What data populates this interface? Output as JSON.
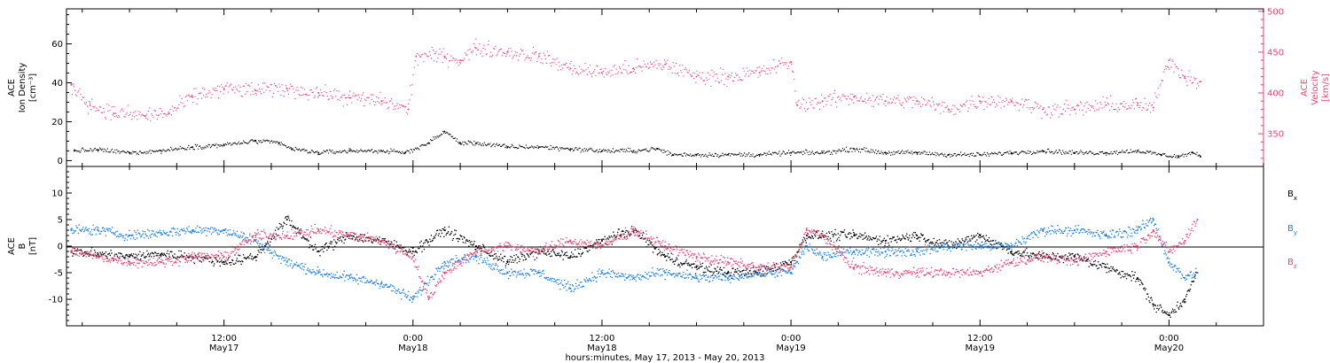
{
  "chart_data": {
    "type": "scatter",
    "x_axis": {
      "title": "hours:minutes, May 17, 2013 - May 20, 2013",
      "ticks": [
        {
          "hours": 12,
          "time": "12:00",
          "date": "May17"
        },
        {
          "hours": 24,
          "time": "0:00",
          "date": "May18"
        },
        {
          "hours": 36,
          "time": "12:00",
          "date": "May18"
        },
        {
          "hours": 48,
          "time": "0:00",
          "date": "May19"
        },
        {
          "hours": 60,
          "time": "12:00",
          "date": "May19"
        },
        {
          "hours": 72,
          "time": "0:00",
          "date": "May20"
        }
      ],
      "range_hours": [
        2,
        78
      ]
    },
    "panels": [
      {
        "id": "plasma",
        "left_axis": {
          "label_lines": [
            "ACE",
            "Ion Density",
            "[cm⁻³]"
          ],
          "ticks": [
            0,
            20,
            40,
            60
          ],
          "range": [
            -3,
            78
          ],
          "color": "#000000"
        },
        "right_axis": {
          "label_lines": [
            "ACE",
            "Velocity",
            "[km/s]"
          ],
          "ticks": [
            350,
            400,
            450,
            500
          ],
          "range": [
            310,
            503
          ],
          "color": "#e8436f"
        },
        "series": [
          {
            "name": "density",
            "axis": "left",
            "color": "#000000",
            "points": [
              [
                2.5,
                5
              ],
              [
                4,
                5.5
              ],
              [
                6,
                4
              ],
              [
                8,
                5
              ],
              [
                10,
                7
              ],
              [
                12,
                8
              ],
              [
                14,
                10
              ],
              [
                15.5,
                9
              ],
              [
                16.3,
                6
              ],
              [
                18,
                4
              ],
              [
                20,
                5
              ],
              [
                22,
                5
              ],
              [
                23.5,
                4
              ],
              [
                25,
                9
              ],
              [
                26,
                15
              ],
              [
                27,
                9
              ],
              [
                28,
                9
              ],
              [
                30,
                7
              ],
              [
                32,
                7
              ],
              [
                34,
                6
              ],
              [
                36,
                5
              ],
              [
                38,
                5
              ],
              [
                39.5,
                6
              ],
              [
                40.5,
                3
              ],
              [
                42,
                3
              ],
              [
                44,
                3
              ],
              [
                46,
                3
              ],
              [
                48,
                4
              ],
              [
                50,
                4
              ],
              [
                52,
                6
              ],
              [
                54,
                4
              ],
              [
                56,
                4
              ],
              [
                58,
                3
              ],
              [
                60,
                3
              ],
              [
                62,
                4
              ],
              [
                64,
                5
              ],
              [
                66,
                4
              ],
              [
                68,
                4
              ],
              [
                70,
                5
              ],
              [
                71.5,
                3
              ],
              [
                72.6,
                2
              ],
              [
                73.5,
                4
              ],
              [
                74,
                2
              ]
            ]
          },
          {
            "name": "velocity",
            "axis": "right",
            "color": "#e8436f",
            "points": [
              [
                2.3,
                410
              ],
              [
                3.5,
                385
              ],
              [
                5,
                375
              ],
              [
                7,
                372
              ],
              [
                8.5,
                375
              ],
              [
                10,
                395
              ],
              [
                12,
                405
              ],
              [
                14,
                403
              ],
              [
                16,
                405
              ],
              [
                18,
                400
              ],
              [
                20,
                394
              ],
              [
                22,
                390
              ],
              [
                23.7,
                380
              ],
              [
                24.2,
                445
              ],
              [
                26,
                445
              ],
              [
                27,
                440
              ],
              [
                28,
                455
              ],
              [
                30,
                450
              ],
              [
                32,
                445
              ],
              [
                34,
                430
              ],
              [
                36,
                425
              ],
              [
                38,
                430
              ],
              [
                40,
                435
              ],
              [
                42,
                420
              ],
              [
                44,
                420
              ],
              [
                46,
                425
              ],
              [
                48,
                438
              ],
              [
                48.4,
                385
              ],
              [
                50,
                390
              ],
              [
                52,
                395
              ],
              [
                54,
                390
              ],
              [
                56,
                390
              ],
              [
                58,
                380
              ],
              [
                60,
                390
              ],
              [
                62,
                390
              ],
              [
                64,
                380
              ],
              [
                66,
                380
              ],
              [
                68,
                385
              ],
              [
                70,
                385
              ],
              [
                71,
                382
              ],
              [
                72,
                440
              ],
              [
                73,
                420
              ],
              [
                74,
                414
              ]
            ]
          }
        ]
      },
      {
        "id": "magnetic",
        "left_axis": {
          "label_lines": [
            "ACE",
            "B",
            "[nT]"
          ],
          "ticks": [
            -10,
            -5,
            0,
            5,
            10
          ],
          "range": [
            -15,
            15
          ]
        },
        "legend": [
          {
            "label": "B",
            "sub": "x",
            "color": "#000000"
          },
          {
            "label": "B",
            "sub": "y",
            "color": "#1a7de0"
          },
          {
            "label": "B",
            "sub": "z",
            "color": "#e8436f"
          }
        ],
        "series": [
          {
            "name": "Bx",
            "color": "#000000",
            "points": [
              [
                2.3,
                -1
              ],
              [
                4,
                -1.5
              ],
              [
                6,
                -2
              ],
              [
                8,
                -1.5
              ],
              [
                10,
                -2
              ],
              [
                12,
                -3
              ],
              [
                14,
                -2
              ],
              [
                16,
                5
              ],
              [
                18,
                -1
              ],
              [
                20,
                2
              ],
              [
                22,
                1
              ],
              [
                24,
                -1
              ],
              [
                26,
                3
              ],
              [
                28,
                0
              ],
              [
                30,
                -3
              ],
              [
                32,
                -1
              ],
              [
                34,
                -2
              ],
              [
                36,
                1
              ],
              [
                38,
                3
              ],
              [
                40,
                -2
              ],
              [
                42,
                -4
              ],
              [
                44,
                -5
              ],
              [
                46,
                -5
              ],
              [
                48,
                -3
              ],
              [
                49,
                2
              ],
              [
                50,
                2
              ],
              [
                52,
                2
              ],
              [
                54,
                1
              ],
              [
                56,
                2
              ],
              [
                58,
                0
              ],
              [
                60,
                2
              ],
              [
                62,
                -1
              ],
              [
                64,
                -2
              ],
              [
                66,
                -2
              ],
              [
                68,
                -4
              ],
              [
                70,
                -6
              ],
              [
                71,
                -11
              ],
              [
                72,
                -13
              ],
              [
                73,
                -10
              ],
              [
                73.8,
                -5
              ]
            ]
          },
          {
            "name": "By",
            "color": "#1a7de0",
            "points": [
              [
                2.3,
                3
              ],
              [
                4,
                3
              ],
              [
                6,
                2
              ],
              [
                8,
                2.5
              ],
              [
                10,
                3
              ],
              [
                12,
                3
              ],
              [
                14,
                1
              ],
              [
                16,
                -3
              ],
              [
                18,
                -5
              ],
              [
                20,
                -6
              ],
              [
                22,
                -7
              ],
              [
                24,
                -10
              ],
              [
                26,
                -3
              ],
              [
                28,
                -2
              ],
              [
                30,
                -5
              ],
              [
                32,
                -5
              ],
              [
                34,
                -8
              ],
              [
                36,
                -5
              ],
              [
                38,
                -6
              ],
              [
                40,
                -5
              ],
              [
                42,
                -6
              ],
              [
                44,
                -6
              ],
              [
                46,
                -5
              ],
              [
                48,
                -5
              ],
              [
                49,
                0
              ],
              [
                50,
                -2
              ],
              [
                52,
                -1
              ],
              [
                54,
                -1
              ],
              [
                56,
                -1
              ],
              [
                58,
                0
              ],
              [
                60,
                0
              ],
              [
                62,
                0
              ],
              [
                64,
                3
              ],
              [
                66,
                3
              ],
              [
                68,
                2
              ],
              [
                70,
                3
              ],
              [
                71,
                5
              ],
              [
                72,
                -3
              ],
              [
                73,
                -6
              ],
              [
                73.8,
                -5
              ]
            ]
          },
          {
            "name": "Bz",
            "color": "#e8436f",
            "points": [
              [
                2.3,
                -1
              ],
              [
                4,
                -2
              ],
              [
                6,
                -3
              ],
              [
                8,
                -3
              ],
              [
                10,
                -2
              ],
              [
                12,
                -2
              ],
              [
                14,
                2
              ],
              [
                16,
                2
              ],
              [
                18,
                3
              ],
              [
                20,
                2
              ],
              [
                22,
                1
              ],
              [
                24,
                -2
              ],
              [
                25,
                -10
              ],
              [
                26,
                -5
              ],
              [
                28,
                -1
              ],
              [
                30,
                0
              ],
              [
                32,
                -1
              ],
              [
                34,
                1
              ],
              [
                36,
                0
              ],
              [
                38,
                3
              ],
              [
                40,
                0
              ],
              [
                42,
                -2
              ],
              [
                44,
                -3
              ],
              [
                46,
                -4
              ],
              [
                48,
                -4
              ],
              [
                49,
                3
              ],
              [
                50,
                2
              ],
              [
                52,
                -4
              ],
              [
                54,
                -5
              ],
              [
                56,
                -5
              ],
              [
                58,
                -5
              ],
              [
                60,
                -5
              ],
              [
                62,
                -3
              ],
              [
                64,
                -2
              ],
              [
                66,
                -3
              ],
              [
                68,
                -1
              ],
              [
                70,
                0
              ],
              [
                71,
                3
              ],
              [
                72,
                -1
              ],
              [
                73,
                1
              ],
              [
                73.8,
                5
              ]
            ]
          }
        ]
      }
    ]
  }
}
